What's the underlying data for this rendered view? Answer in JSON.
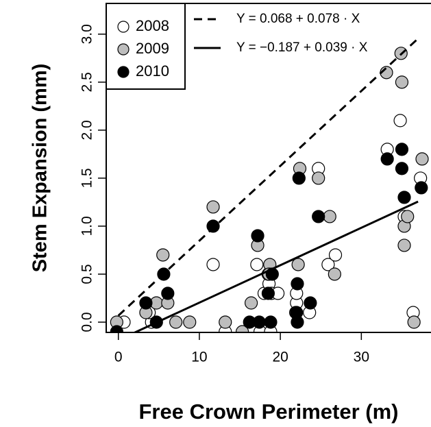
{
  "chart_data": {
    "type": "scatter",
    "x_label": "Free Crown Perimeter (m)",
    "y_label": "Stem Expansion (mm)",
    "xlim": [
      -1.5,
      38.6
    ],
    "ylim": [
      -0.107,
      3.32
    ],
    "xticks": [
      0,
      10,
      20,
      30
    ],
    "yticks": [
      {
        "value": 0,
        "label": "0.0"
      },
      {
        "value": 0.5,
        "label": "0.5"
      },
      {
        "value": 1,
        "label": "1.0"
      },
      {
        "value": 1.5,
        "label": "1.5"
      },
      {
        "value": 2,
        "label": "2.0"
      },
      {
        "value": 2.5,
        "label": "2.5"
      },
      {
        "value": 3,
        "label": "3.0"
      }
    ],
    "series": [
      {
        "name": "2008",
        "color": "#ffffff",
        "x": [
          0.7,
          4.1,
          3.8,
          11.7,
          17.1,
          18.0,
          18.6,
          18.5,
          18.9,
          17.5,
          18.8,
          13.2,
          19.7,
          22.0,
          22.0,
          21.9,
          23.6,
          24.7,
          25.9,
          26.8,
          33.2,
          34.8,
          35.3,
          36.4,
          37.3
        ],
        "y": [
          0.0,
          0.0,
          0.1,
          0.6,
          0.6,
          0.3,
          0.4,
          0.5,
          0.3,
          -0.1,
          -0.1,
          -0.1,
          0.3,
          0.2,
          0.3,
          0.1,
          0.1,
          1.6,
          0.6,
          0.7,
          1.8,
          2.1,
          1.1,
          0.1,
          1.5
        ]
      },
      {
        "name": "2009",
        "color": "#bdbdbd",
        "x": [
          -0.2,
          3.4,
          4.7,
          5.5,
          6.1,
          7.1,
          8.8,
          11.7,
          13.2,
          15.3,
          16.4,
          17.2,
          18.7,
          18.6,
          22.2,
          22.4,
          24.7,
          26.1,
          26.7,
          33.1,
          34.9,
          35.0,
          35.3,
          35.3,
          36.5,
          37.5,
          35.7
        ],
        "y": [
          0.0,
          0.1,
          0.2,
          0.7,
          0.2,
          0.0,
          0.0,
          1.2,
          0.0,
          -0.1,
          0.2,
          0.8,
          0.6,
          0.5,
          0.6,
          1.6,
          1.5,
          1.1,
          0.5,
          2.6,
          2.8,
          2.5,
          1.0,
          0.8,
          0.0,
          1.7,
          1.1
        ]
      },
      {
        "name": "2010",
        "color": "#000000",
        "x": [
          -0.2,
          3.4,
          4.7,
          5.6,
          6.1,
          11.7,
          16.2,
          17.4,
          17.2,
          18.8,
          18.5,
          19.0,
          22.1,
          22.0,
          22.3,
          22.1,
          23.7,
          24.7,
          33.2,
          35.0,
          35.0,
          35.3,
          37.4
        ],
        "y": [
          -0.1,
          0.2,
          0.0,
          0.5,
          0.3,
          1.0,
          0.0,
          0.0,
          0.9,
          0.0,
          0.3,
          0.5,
          0.4,
          0.1,
          1.5,
          0.0,
          0.2,
          1.1,
          1.7,
          1.8,
          1.6,
          1.3,
          1.4
        ]
      }
    ],
    "fits": [
      {
        "label": "Y = 0.068 + 0.078 · X",
        "intercept": 0.068,
        "slope": 0.078,
        "x": [
          0,
          37
        ],
        "dashed": true
      },
      {
        "label": "Y = −0.187 + 0.039 · X",
        "intercept": -0.187,
        "slope": 0.039,
        "x": [
          0,
          37
        ],
        "dashed": false
      }
    ]
  }
}
